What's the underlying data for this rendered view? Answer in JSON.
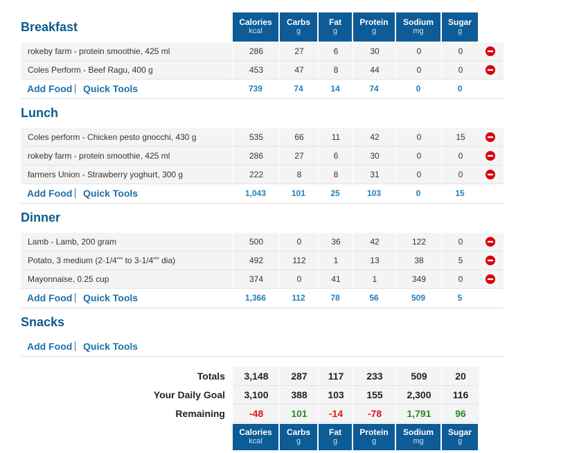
{
  "columns": [
    {
      "name": "Calories",
      "unit": "kcal"
    },
    {
      "name": "Carbs",
      "unit": "g"
    },
    {
      "name": "Fat",
      "unit": "g"
    },
    {
      "name": "Protein",
      "unit": "g"
    },
    {
      "name": "Sodium",
      "unit": "mg"
    },
    {
      "name": "Sugar",
      "unit": "g"
    }
  ],
  "meals": [
    {
      "name": "Breakfast",
      "foods": [
        {
          "name": "rokeby farm - protein smoothie, 425 ml",
          "values": [
            "286",
            "27",
            "6",
            "30",
            "0",
            "0"
          ]
        },
        {
          "name": "Coles Perform - Beef Ragu, 400 g",
          "values": [
            "453",
            "47",
            "8",
            "44",
            "0",
            "0"
          ]
        }
      ],
      "add_food": "Add Food",
      "quick_tools": "Quick Tools",
      "totals": [
        "739",
        "74",
        "14",
        "74",
        "0",
        "0"
      ]
    },
    {
      "name": "Lunch",
      "foods": [
        {
          "name": "Coles perform - Chicken pesto gnocchi, 430 g",
          "values": [
            "535",
            "66",
            "11",
            "42",
            "0",
            "15"
          ]
        },
        {
          "name": "rokeby farm - protein smoothie, 425 ml",
          "values": [
            "286",
            "27",
            "6",
            "30",
            "0",
            "0"
          ]
        },
        {
          "name": "farmers Union - Strawberry yoghurt, 300 g",
          "values": [
            "222",
            "8",
            "8",
            "31",
            "0",
            "0"
          ]
        }
      ],
      "add_food": "Add Food",
      "quick_tools": "Quick Tools",
      "totals": [
        "1,043",
        "101",
        "25",
        "103",
        "0",
        "15"
      ]
    },
    {
      "name": "Dinner",
      "foods": [
        {
          "name": "Lamb - Lamb, 200 gram",
          "values": [
            "500",
            "0",
            "36",
            "42",
            "122",
            "0"
          ]
        },
        {
          "name": "Potato, 3 medium (2-1/4\"\" to 3-1/4\"\" dia)",
          "values": [
            "492",
            "112",
            "1",
            "13",
            "38",
            "5"
          ]
        },
        {
          "name": "Mayonnaise, 0.25 cup",
          "values": [
            "374",
            "0",
            "41",
            "1",
            "349",
            "0"
          ]
        }
      ],
      "add_food": "Add Food",
      "quick_tools": "Quick Tools",
      "totals": [
        "1,366",
        "112",
        "78",
        "56",
        "509",
        "5"
      ]
    },
    {
      "name": "Snacks",
      "foods": [],
      "add_food": "Add Food",
      "quick_tools": "Quick Tools"
    }
  ],
  "summary": [
    {
      "label": "Totals",
      "values": [
        "3,148",
        "287",
        "117",
        "233",
        "509",
        "20"
      ]
    },
    {
      "label": "Your Daily Goal",
      "values": [
        "3,100",
        "388",
        "103",
        "155",
        "2,300",
        "116"
      ]
    },
    {
      "label": "Remaining",
      "values": [
        "-48",
        "101",
        "-14",
        "-78",
        "1,791",
        "96"
      ]
    }
  ]
}
